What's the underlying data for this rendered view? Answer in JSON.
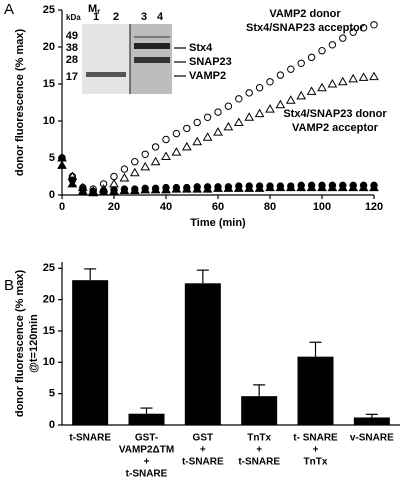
{
  "chart_data": [
    {
      "type": "scatter",
      "panel": "A",
      "xlabel": "Time (min)",
      "ylabel": "donor fluorescence (% max)",
      "xlim": [
        0,
        120
      ],
      "ylim": [
        0,
        25
      ],
      "xticks": [
        0,
        20,
        40,
        60,
        80,
        100,
        120
      ],
      "yticks": [
        0,
        5,
        10,
        15,
        20,
        25
      ],
      "x": [
        0,
        4,
        8,
        12,
        16,
        20,
        24,
        28,
        32,
        36,
        40,
        44,
        48,
        52,
        56,
        60,
        64,
        68,
        72,
        76,
        80,
        84,
        88,
        92,
        96,
        100,
        104,
        108,
        112,
        116,
        120
      ],
      "series": [
        {
          "marker": "circle",
          "fill": "#ffffff",
          "color": "#000000",
          "values": [
            5,
            2.5,
            1,
            0.8,
            1.5,
            2.5,
            3.5,
            4.5,
            5.5,
            6.5,
            7.5,
            8.3,
            9,
            9.8,
            10.5,
            11.2,
            12,
            13,
            13.8,
            14.5,
            15.3,
            16.2,
            17,
            17.8,
            18.6,
            19.5,
            20.3,
            21.2,
            22,
            22.6,
            23
          ]
        },
        {
          "marker": "triangle",
          "fill": "#ffffff",
          "color": "#000000",
          "values": [
            5,
            2.5,
            1,
            0.5,
            0.8,
            1.5,
            2.3,
            3,
            3.8,
            4.5,
            5.2,
            5.8,
            6.5,
            7.2,
            7.8,
            8.5,
            9.2,
            9.8,
            10.5,
            11,
            11.6,
            12.2,
            12.8,
            13.4,
            14,
            14.5,
            15,
            15.3,
            15.7,
            15.9,
            16
          ]
        },
        {
          "marker": "circle",
          "fill": "#000000",
          "color": "#000000",
          "values": [
            5,
            2,
            0.8,
            0.5,
            0.6,
            0.7,
            0.8,
            0.8,
            0.9,
            0.9,
            1,
            1,
            1,
            1.1,
            1.1,
            1.1,
            1.1,
            1.2,
            1.2,
            1.2,
            1.2,
            1.2,
            1.2,
            1.3,
            1.3,
            1.3,
            1.3,
            1.3,
            1.3,
            1.3,
            1.3
          ]
        },
        {
          "marker": "triangle",
          "fill": "#000000",
          "color": "#000000",
          "values": [
            4,
            1.5,
            0.5,
            0.3,
            0.4,
            0.5,
            0.6,
            0.6,
            0.7,
            0.7,
            0.7,
            0.8,
            0.8,
            0.8,
            0.8,
            0.9,
            0.9,
            0.9,
            0.9,
            0.9,
            1,
            1,
            1,
            1,
            1,
            1,
            1,
            1,
            1,
            1,
            1
          ]
        }
      ],
      "annotations": [
        "VAMP2 donor",
        "Stx4/SNAP23 acceptor",
        "Stx4/SNAP23 donor",
        "VAMP2 acceptor"
      ],
      "inset": {
        "mr": "M",
        "mr_sub": "r",
        "unit": "kDa",
        "lanes": [
          "1",
          "2",
          "3",
          "4"
        ],
        "markers": [
          "49",
          "38",
          "28",
          "17"
        ],
        "bands": [
          "Stx4",
          "SNAP23",
          "VAMP2"
        ]
      }
    },
    {
      "type": "bar",
      "panel": "B",
      "ylabel": [
        "donor fluorescence (% max)",
        "@t=120min"
      ],
      "ylim": [
        0,
        26
      ],
      "yticks": [
        0,
        5,
        10,
        15,
        20,
        25
      ],
      "color": "#000000",
      "categories": [
        [
          "t-SNARE"
        ],
        [
          "GST-",
          "VAMP2ΔTM",
          "+",
          "t-SNARE"
        ],
        [
          "GST",
          "+",
          "t-SNARE"
        ],
        [
          "TnTx",
          "+",
          "t-SNARE"
        ],
        [
          "t- SNARE",
          "+",
          "TnTx"
        ],
        [
          "v-SNARE"
        ]
      ],
      "values": [
        23.1,
        1.8,
        22.6,
        4.6,
        10.9,
        1.2
      ],
      "errors": [
        1.8,
        0.9,
        2.1,
        1.8,
        2.3,
        0.5
      ]
    }
  ]
}
